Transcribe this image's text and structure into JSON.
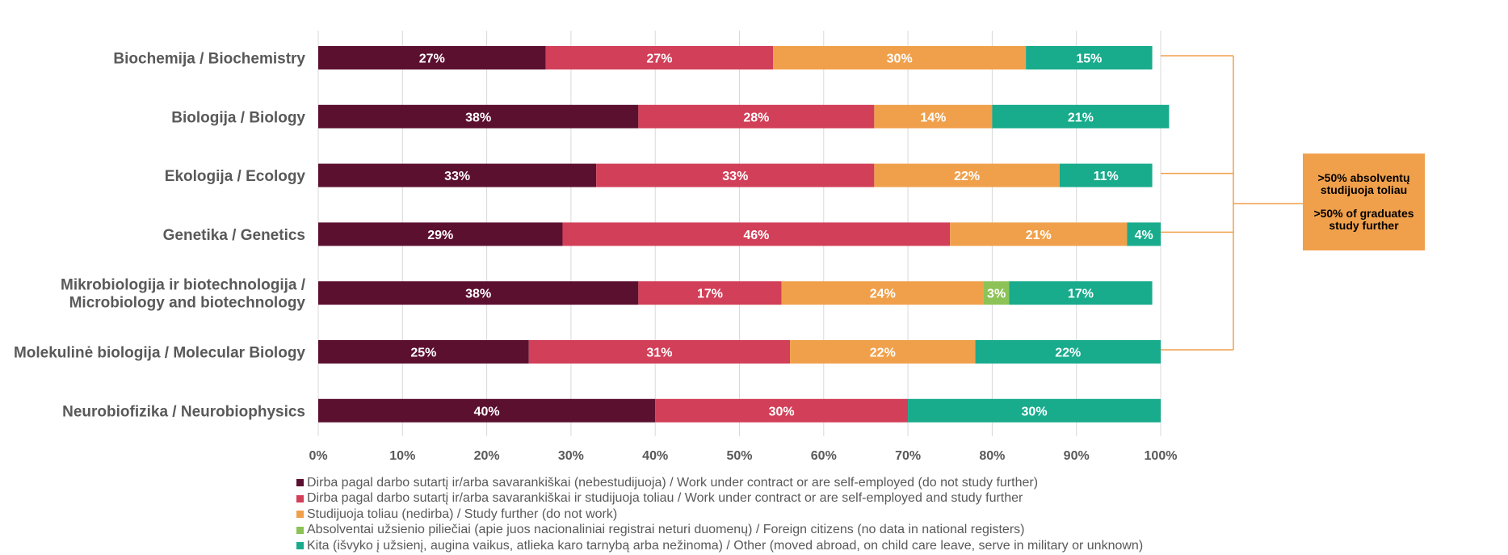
{
  "colors": {
    "series": [
      "#5c1030",
      "#d23f58",
      "#f0a04b",
      "#8dc356",
      "#18ab8c"
    ],
    "note_box": "#f0a04b",
    "bracket": "#f0a04b",
    "text": "#595959"
  },
  "note": {
    "line1": ">50% absolventų",
    "line2": "studijuoja toliau",
    "line3": ">50% of graduates",
    "line4": "study further"
  },
  "chart_data": {
    "type": "bar",
    "orientation": "horizontal",
    "stacked": "percent",
    "categories": [
      [
        "Biochemija / Biochemistry"
      ],
      [
        "Biologija / Biology"
      ],
      [
        "Ekologija / Ecology"
      ],
      [
        "Genetika / Genetics"
      ],
      [
        "Mikrobiologija ir biotechnologija /",
        "Microbiology and biotechnology"
      ],
      [
        "Molekulinė biologija / Molecular Biology"
      ],
      [
        "Neurobiofizika / Neurobiophysics"
      ]
    ],
    "series": [
      {
        "name": "Dirba pagal darbo sutartį ir/arba savarankiškai (nebestudijuoja) / Work under contract or are self-employed (do not study further)",
        "values": [
          27,
          38,
          33,
          29,
          38,
          25,
          40
        ]
      },
      {
        "name": "Dirba pagal darbo sutartį ir/arba savarankiškai  ir studijuoja toliau / Work under contract or are self-employed and study further",
        "values": [
          27,
          28,
          33,
          46,
          17,
          31,
          30
        ]
      },
      {
        "name": "Studijuoja toliau (nedirba) / Study further (do not work)",
        "values": [
          30,
          14,
          22,
          21,
          24,
          22,
          0
        ]
      },
      {
        "name": "Absolventai užsienio piliečiai (apie juos nacionaliniai registrai neturi duomenų) / Foreign citizens (no data in national registers)",
        "values": [
          0,
          0,
          0,
          0,
          3,
          0,
          0
        ]
      },
      {
        "name": "Kita (išvyko į užsienį, augina vaikus, atlieka karo tarnybą arba nežinoma) / Other (moved abroad, on child care leave, serve in military or unknown)",
        "values": [
          15,
          21,
          11,
          4,
          17,
          22,
          30
        ]
      }
    ],
    "x_ticks": [
      "0%",
      "10%",
      "20%",
      "30%",
      "40%",
      "50%",
      "60%",
      "70%",
      "80%",
      "90%",
      "100%"
    ],
    "xlim": [
      0,
      100
    ],
    "grid": true,
    "legend_position": "bottom",
    "bracketed_categories": [
      0,
      2,
      3,
      5
    ]
  }
}
